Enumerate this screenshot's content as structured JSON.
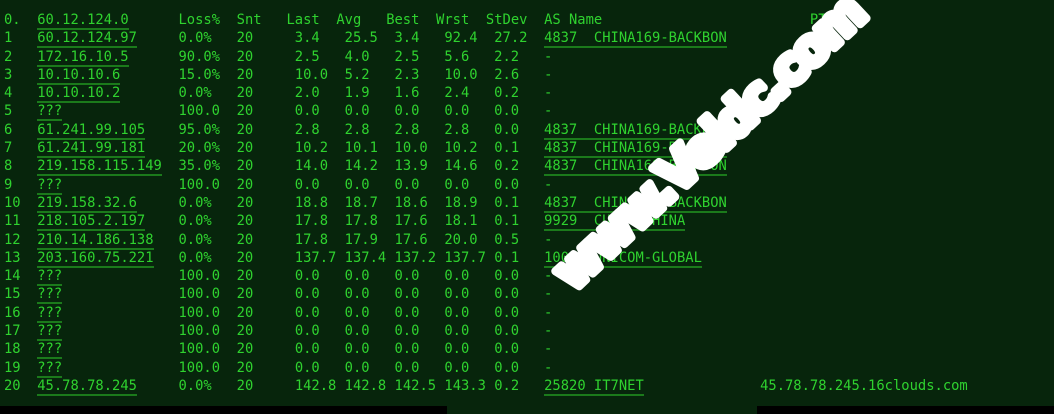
{
  "watermark": {
    "text": "www.Veldc.com",
    "color": "#ffffff"
  },
  "terminal": {
    "colors": {
      "background": "#07250c",
      "text": "#2fd22f",
      "link_underline": "#1b7a1b",
      "bottom_bar": "#000000"
    },
    "header": {
      "hop": "0.",
      "host": "60.12.124.0",
      "loss": "Loss%",
      "snt": "Snt",
      "last": "Last",
      "avg": "Avg",
      "best": "Best",
      "wrst": "Wrst",
      "stdev": "StDev",
      "as_name": "AS Name",
      "ptr": "PTR"
    },
    "hops": [
      {
        "hop": "1",
        "host": "60.12.124.97",
        "loss": "0.0%",
        "snt": "20",
        "last": "3.4",
        "avg": "25.5",
        "best": "3.4",
        "wrst": "92.4",
        "stdev": "27.2",
        "as_name": "4837  CHINA169-BACKBON",
        "ptr": ""
      },
      {
        "hop": "2",
        "host": "172.16.10.5",
        "loss": "90.0%",
        "snt": "20",
        "last": "2.5",
        "avg": "4.0",
        "best": "2.5",
        "wrst": "5.6",
        "stdev": "2.2",
        "as_name": "-",
        "ptr": ""
      },
      {
        "hop": "3",
        "host": "10.10.10.6",
        "loss": "15.0%",
        "snt": "20",
        "last": "10.0",
        "avg": "5.2",
        "best": "2.3",
        "wrst": "10.0",
        "stdev": "2.6",
        "as_name": "-",
        "ptr": ""
      },
      {
        "hop": "4",
        "host": "10.10.10.2",
        "loss": "0.0%",
        "snt": "20",
        "last": "2.0",
        "avg": "1.9",
        "best": "1.6",
        "wrst": "2.4",
        "stdev": "0.2",
        "as_name": "-",
        "ptr": ""
      },
      {
        "hop": "5",
        "host": "???",
        "loss": "100.0",
        "snt": "20",
        "last": "0.0",
        "avg": "0.0",
        "best": "0.0",
        "wrst": "0.0",
        "stdev": "0.0",
        "as_name": "-",
        "ptr": ""
      },
      {
        "hop": "6",
        "host": "61.241.99.105",
        "loss": "95.0%",
        "snt": "20",
        "last": "2.8",
        "avg": "2.8",
        "best": "2.8",
        "wrst": "2.8",
        "stdev": "0.0",
        "as_name": "4837  CHINA169-BACKBON",
        "ptr": ""
      },
      {
        "hop": "7",
        "host": "61.241.99.181",
        "loss": "20.0%",
        "snt": "20",
        "last": "10.2",
        "avg": "10.1",
        "best": "10.0",
        "wrst": "10.2",
        "stdev": "0.1",
        "as_name": "4837  CHINA169-BACKBON",
        "ptr": ""
      },
      {
        "hop": "8",
        "host": "219.158.115.149",
        "loss": "35.0%",
        "snt": "20",
        "last": "14.0",
        "avg": "14.2",
        "best": "13.9",
        "wrst": "14.6",
        "stdev": "0.2",
        "as_name": "4837  CHINA169-BACKBON",
        "ptr": ""
      },
      {
        "hop": "9",
        "host": "???",
        "loss": "100.0",
        "snt": "20",
        "last": "0.0",
        "avg": "0.0",
        "best": "0.0",
        "wrst": "0.0",
        "stdev": "0.0",
        "as_name": "-",
        "ptr": ""
      },
      {
        "hop": "10",
        "host": "219.158.32.6",
        "loss": "0.0%",
        "snt": "20",
        "last": "18.8",
        "avg": "18.7",
        "best": "18.6",
        "wrst": "18.9",
        "stdev": "0.1",
        "as_name": "4837  CHINA169-BACKBON",
        "ptr": ""
      },
      {
        "hop": "11",
        "host": "218.105.2.197",
        "loss": "0.0%",
        "snt": "20",
        "last": "17.8",
        "avg": "17.8",
        "best": "17.6",
        "wrst": "18.1",
        "stdev": "0.1",
        "as_name": "9929  CUII  CHINA",
        "ptr": ""
      },
      {
        "hop": "12",
        "host": "210.14.186.138",
        "loss": "0.0%",
        "snt": "20",
        "last": "17.8",
        "avg": "17.9",
        "best": "17.6",
        "wrst": "20.0",
        "stdev": "0.5",
        "as_name": "-",
        "ptr": ""
      },
      {
        "hop": "13",
        "host": "203.160.75.221",
        "loss": "0.0%",
        "snt": "20",
        "last": "137.7",
        "avg": "137.4",
        "best": "137.2",
        "wrst": "137.7",
        "stdev": "0.1",
        "as_name": "10099 UNICOM-GLOBAL",
        "ptr": ""
      },
      {
        "hop": "14",
        "host": "???",
        "loss": "100.0",
        "snt": "20",
        "last": "0.0",
        "avg": "0.0",
        "best": "0.0",
        "wrst": "0.0",
        "stdev": "0.0",
        "as_name": "-",
        "ptr": ""
      },
      {
        "hop": "15",
        "host": "???",
        "loss": "100.0",
        "snt": "20",
        "last": "0.0",
        "avg": "0.0",
        "best": "0.0",
        "wrst": "0.0",
        "stdev": "0.0",
        "as_name": "-",
        "ptr": ""
      },
      {
        "hop": "16",
        "host": "???",
        "loss": "100.0",
        "snt": "20",
        "last": "0.0",
        "avg": "0.0",
        "best": "0.0",
        "wrst": "0.0",
        "stdev": "0.0",
        "as_name": "-",
        "ptr": ""
      },
      {
        "hop": "17",
        "host": "???",
        "loss": "100.0",
        "snt": "20",
        "last": "0.0",
        "avg": "0.0",
        "best": "0.0",
        "wrst": "0.0",
        "stdev": "0.0",
        "as_name": "-",
        "ptr": ""
      },
      {
        "hop": "18",
        "host": "???",
        "loss": "100.0",
        "snt": "20",
        "last": "0.0",
        "avg": "0.0",
        "best": "0.0",
        "wrst": "0.0",
        "stdev": "0.0",
        "as_name": "-",
        "ptr": ""
      },
      {
        "hop": "19",
        "host": "???",
        "loss": "100.0",
        "snt": "20",
        "last": "0.0",
        "avg": "0.0",
        "best": "0.0",
        "wrst": "0.0",
        "stdev": "0.0",
        "as_name": "-",
        "ptr": ""
      },
      {
        "hop": "20",
        "host": "45.78.78.245",
        "loss": "0.0%",
        "snt": "20",
        "last": "142.8",
        "avg": "142.8",
        "best": "142.5",
        "wrst": "143.3",
        "stdev": "0.2",
        "as_name": "25820 IT7NET",
        "ptr": "45.78.78.245.16clouds.com"
      }
    ]
  }
}
